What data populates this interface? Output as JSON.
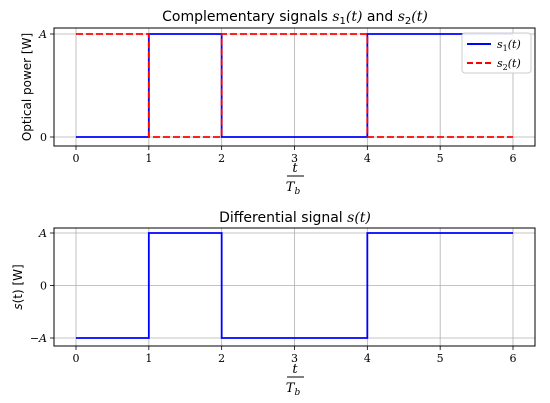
{
  "chart_data": [
    {
      "type": "line",
      "step": "post",
      "title": {
        "prefix": "Complementary signals ",
        "m1": "s",
        "s1": "1",
        "a1": "(t)",
        "and": " and ",
        "m2": "s",
        "s2": "2",
        "a2": "(t)"
      },
      "ylabel": "Optical power [W]",
      "xlabel": {
        "num": "t",
        "den": "T",
        "den_sub": "b"
      },
      "x_ticks": [
        0,
        1,
        2,
        3,
        4,
        5,
        6
      ],
      "x_tick_labels": [
        "0",
        "1",
        "2",
        "3",
        "4",
        "5",
        "6"
      ],
      "y_ticks": [
        0,
        1
      ],
      "y_tick_labels": [
        "0",
        "A"
      ],
      "xlim": [
        0,
        6
      ],
      "ylim": [
        0,
        1
      ],
      "grid": true,
      "legend": {
        "position": "top-right"
      },
      "series": [
        {
          "legend_base": "s",
          "legend_sub": "1",
          "legend_arg": "(t)",
          "color": "#0000ff",
          "dash": "solid",
          "x": [
            0,
            1,
            2,
            4,
            6
          ],
          "y": [
            0,
            1,
            0,
            1,
            1
          ]
        },
        {
          "legend_base": "s",
          "legend_sub": "2",
          "legend_arg": "(t)",
          "color": "#ff0000",
          "dash": "dashed",
          "x": [
            0,
            1,
            2,
            4,
            6
          ],
          "y": [
            1,
            0,
            1,
            0,
            0
          ]
        }
      ]
    },
    {
      "type": "line",
      "step": "post",
      "title": {
        "prefix": "Differential signal ",
        "m1": "s",
        "a1": "(t)"
      },
      "ylabel": {
        "m": "s",
        "rest": "(t) [W]"
      },
      "xlabel": {
        "num": "t",
        "den": "T",
        "den_sub": "b"
      },
      "x_ticks": [
        0,
        1,
        2,
        3,
        4,
        5,
        6
      ],
      "x_tick_labels": [
        "0",
        "1",
        "2",
        "3",
        "4",
        "5",
        "6"
      ],
      "y_ticks": [
        -1,
        0,
        1
      ],
      "y_tick_labels": [
        "−A",
        "0",
        "A"
      ],
      "xlim": [
        0,
        6
      ],
      "ylim": [
        -1,
        1
      ],
      "grid": true,
      "series": [
        {
          "color": "#0000ff",
          "dash": "solid",
          "x": [
            0,
            1,
            2,
            4,
            6
          ],
          "y": [
            -1,
            1,
            -1,
            1,
            1
          ]
        }
      ]
    }
  ]
}
